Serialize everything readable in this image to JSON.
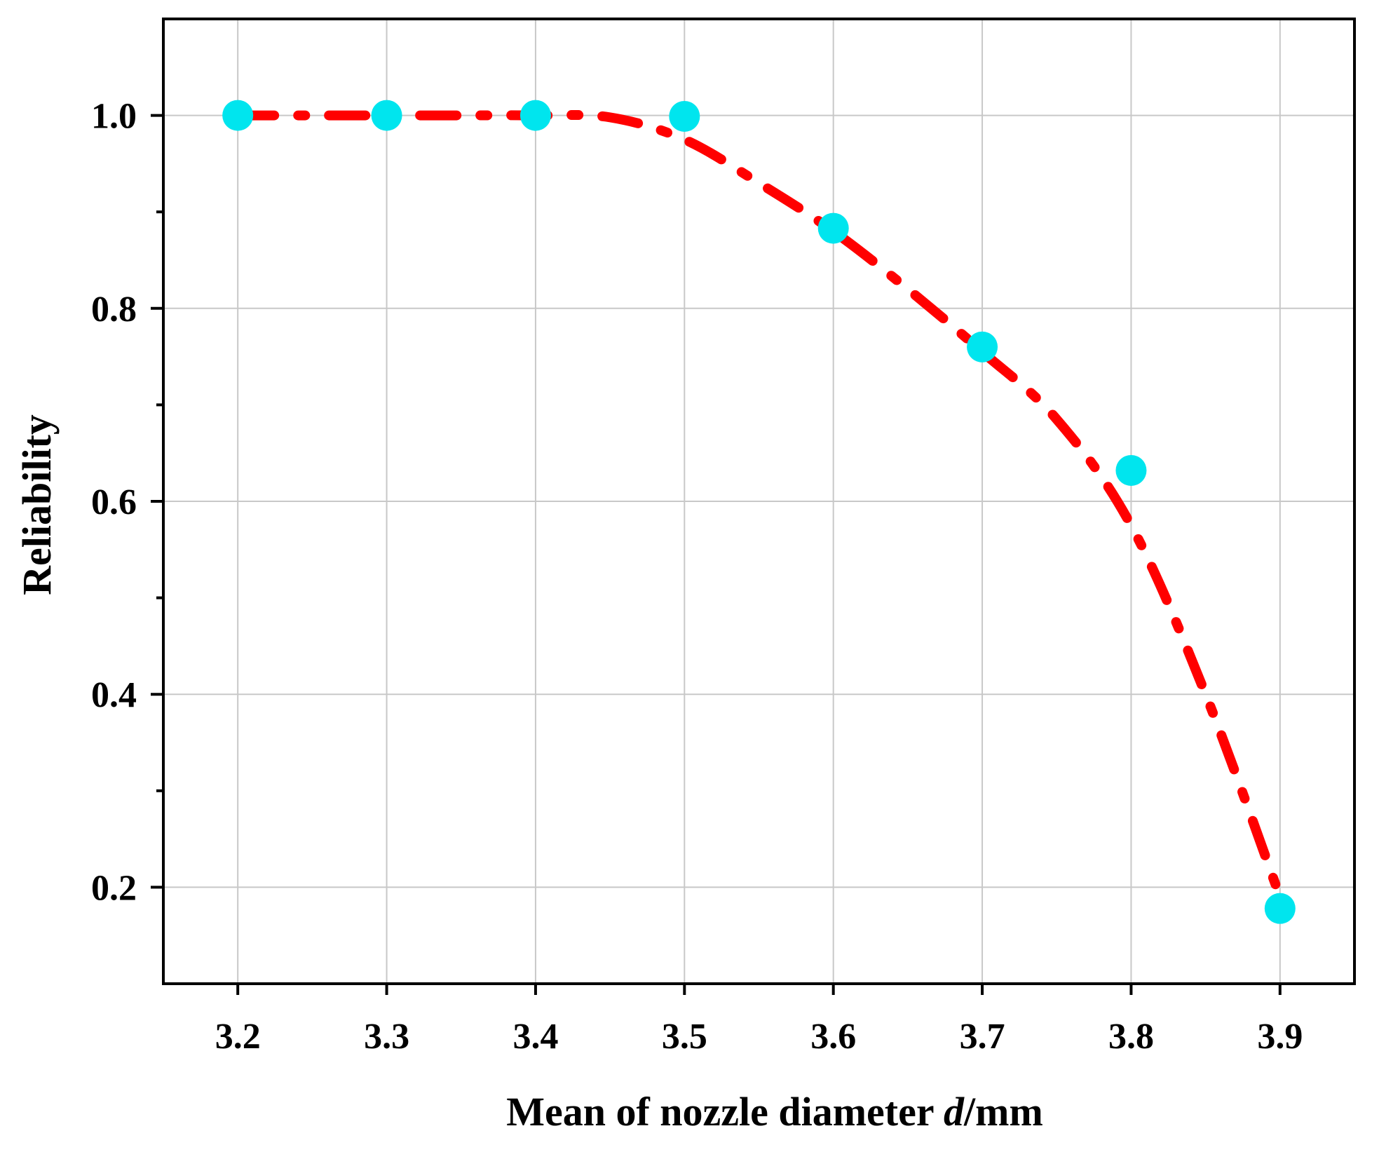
{
  "chart_data": {
    "type": "line",
    "title": "",
    "xlabel": "Mean of nozzle diameter ",
    "xlabel_italic": "d",
    "xlabel_unit": "/mm",
    "ylabel": "Reliability",
    "xlim": [
      3.15,
      3.95
    ],
    "ylim": [
      0.1,
      1.1
    ],
    "x_ticks": [
      3.2,
      3.3,
      3.4,
      3.5,
      3.6,
      3.7,
      3.8,
      3.9
    ],
    "x_tick_labels": [
      "3.2",
      "3.3",
      "3.4",
      "3.5",
      "3.6",
      "3.7",
      "3.8",
      "3.9"
    ],
    "y_ticks": [
      0.2,
      0.4,
      0.6,
      0.8,
      1.0
    ],
    "y_tick_labels": [
      "0.2",
      "0.4",
      "0.6",
      "0.8",
      "1.0"
    ],
    "y_minor_ticks": [
      0.3,
      0.5,
      0.7,
      0.9
    ],
    "grid": true,
    "series": [
      {
        "kind": "points",
        "color": "#00e5ee",
        "x": [
          3.2,
          3.3,
          3.4,
          3.5,
          3.6,
          3.7,
          3.8,
          3.9
        ],
        "y": [
          1.0,
          1.0,
          1.0,
          0.999,
          0.883,
          0.76,
          0.632,
          0.178
        ]
      },
      {
        "kind": "fit-curve",
        "color": "#ff0000",
        "line_style": "dash-dot",
        "x": [
          3.2,
          3.25,
          3.3,
          3.35,
          3.4,
          3.45,
          3.5,
          3.55,
          3.6,
          3.65,
          3.7,
          3.75,
          3.8,
          3.85,
          3.9
        ],
        "y": [
          1.0,
          1.0,
          1.0,
          1.0,
          1.0,
          0.998,
          0.975,
          0.93,
          0.88,
          0.82,
          0.755,
          0.685,
          0.575,
          0.4,
          0.19
        ]
      }
    ]
  }
}
